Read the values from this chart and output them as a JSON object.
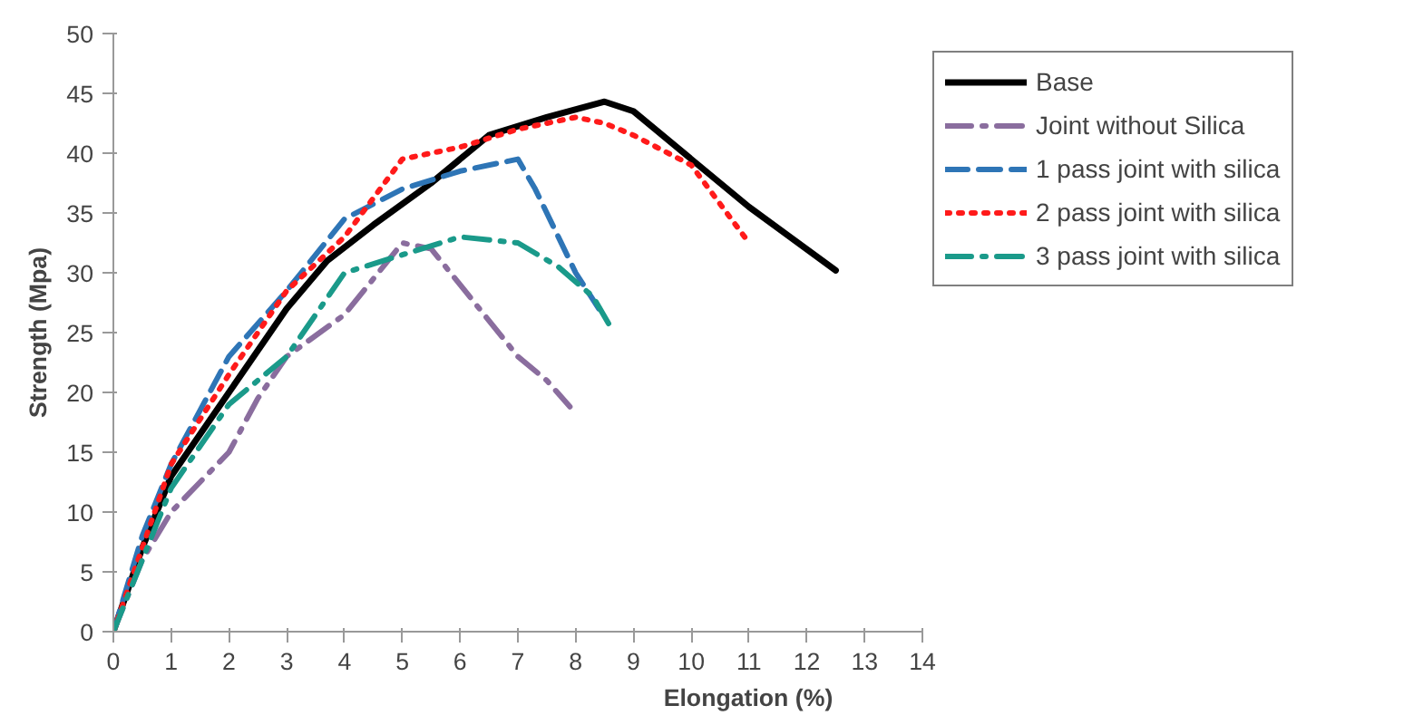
{
  "chart_data": {
    "type": "line",
    "xlabel": "Elongation (%)",
    "ylabel": "Strength (Mpa)",
    "xlim": [
      0,
      14
    ],
    "ylim": [
      0,
      50
    ],
    "xticks": [
      0,
      1,
      2,
      3,
      4,
      5,
      6,
      7,
      8,
      9,
      10,
      11,
      12,
      13,
      14
    ],
    "yticks": [
      0,
      5,
      10,
      15,
      20,
      25,
      30,
      35,
      40,
      45,
      50
    ],
    "grid": false,
    "legend": "right",
    "marker": "none",
    "series": [
      {
        "name": "Base",
        "color": "#000000",
        "line_style": "solid",
        "x": [
          0,
          0.5,
          1,
          2,
          3,
          3.7,
          4.5,
          5.5,
          6.5,
          7.5,
          8.5,
          9,
          10,
          11,
          12.5
        ],
        "values": [
          0,
          7,
          13,
          20,
          27,
          31,
          34,
          37.5,
          41.5,
          43,
          44.3,
          43.5,
          39.5,
          35.5,
          30.2
        ]
      },
      {
        "name": "Joint without Silica",
        "color": "#8a6d9e",
        "line_style": "dashdot",
        "x": [
          0,
          0.5,
          1,
          1.5,
          2,
          2.5,
          3,
          4,
          5,
          5.5,
          6,
          6.5,
          7,
          7.5,
          7.9
        ],
        "values": [
          0,
          6,
          10,
          12.5,
          15,
          19.5,
          23,
          26.5,
          32.5,
          32,
          29,
          26,
          23,
          21,
          18.8
        ]
      },
      {
        "name": "1 pass joint with silica",
        "color": "#2e75b6",
        "line_style": "dashed",
        "x": [
          0,
          0.5,
          1,
          2,
          3,
          4,
          5,
          6,
          7,
          7.3,
          7.7,
          8,
          8.4
        ],
        "values": [
          0,
          8,
          14,
          23,
          28.5,
          34.5,
          37,
          38.5,
          39.5,
          37,
          33,
          30,
          27
        ]
      },
      {
        "name": "2 pass joint with silica",
        "color": "#ff1a1a",
        "line_style": "dotted",
        "x": [
          0,
          0.5,
          1,
          2,
          3,
          4,
          5,
          6,
          7,
          8,
          8.5,
          9,
          10,
          11
        ],
        "values": [
          0,
          7,
          14,
          21.5,
          28.5,
          33,
          39.5,
          40.5,
          42,
          43,
          42.5,
          41.5,
          39,
          32.5
        ]
      },
      {
        "name": "3 pass joint with silica",
        "color": "#1a9a8a",
        "line_style": "dashdot",
        "x": [
          0,
          0.5,
          1,
          2,
          3,
          4,
          5,
          6,
          7,
          7.7,
          8.3,
          8.6
        ],
        "values": [
          0,
          6,
          12,
          19,
          23,
          30,
          31.5,
          33,
          32.5,
          30.5,
          28,
          25.5
        ]
      }
    ]
  }
}
